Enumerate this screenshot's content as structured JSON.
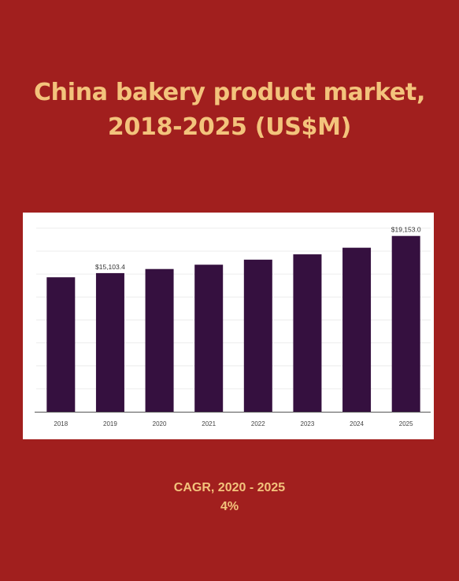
{
  "title": {
    "line1": "China bakery product market,",
    "line2": "2018-2025 (US$M)"
  },
  "colors": {
    "background": "#a11f1e",
    "title": "#f3c37c",
    "bar": "#35103f"
  },
  "chart_data": {
    "type": "bar",
    "title": "China bakery product market, 2018-2025 (US$M)",
    "categories": [
      "2018",
      "2019",
      "2020",
      "2021",
      "2022",
      "2023",
      "2024",
      "2025"
    ],
    "values": [
      14650,
      15103.4,
      15550,
      16020,
      16570,
      17150,
      17870,
      19153.0
    ],
    "data_labels": {
      "1": "$15,103.4",
      "7": "$19,153.0"
    },
    "ylim": [
      0,
      20500
    ],
    "grid": true,
    "xlabel": "",
    "ylabel": ""
  },
  "cagr": {
    "label": "CAGR, 2020 - 2025",
    "value": "4%"
  }
}
